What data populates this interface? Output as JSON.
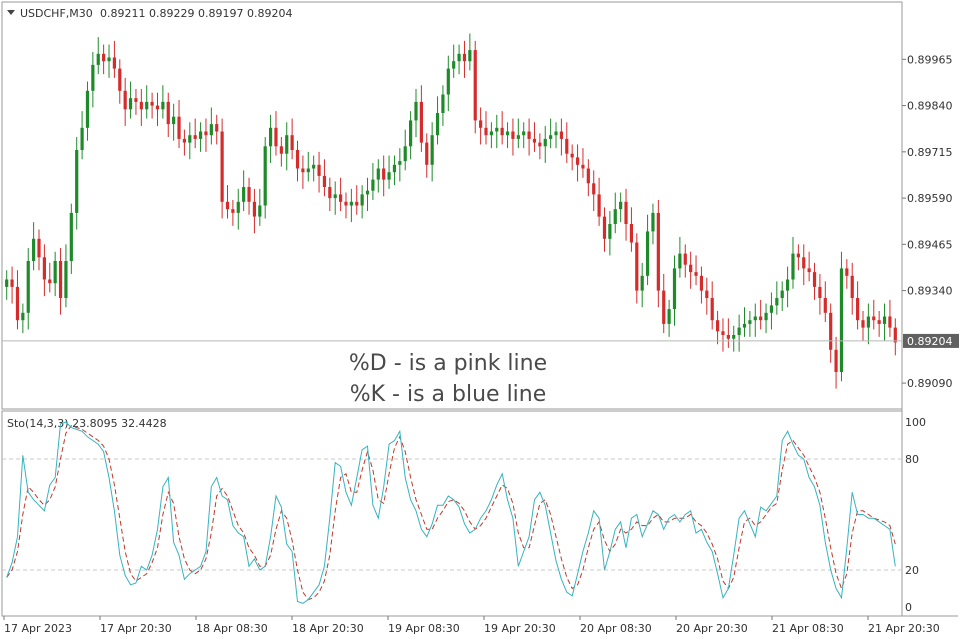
{
  "header": {
    "symbol": "USDCHF,M30",
    "values": "0.89211 0.89229 0.89197 0.89204"
  },
  "annotations": {
    "line1": "%D - is a pink line",
    "line2": "%K - is a blue line"
  },
  "colors": {
    "bull": "#1f8a2a",
    "bear": "#d62b2b",
    "k_line": "#36b3c0",
    "d_line": "#c0392b",
    "current_price_bg": "#606060"
  },
  "chart_data": [
    {
      "type": "candlestick",
      "title": "USDCHF,M30",
      "ylim": [
        0.8902,
        0.9012
      ],
      "y_ticks": [
        0.89965,
        0.8984,
        0.89715,
        0.8959,
        0.89465,
        0.8934,
        0.89204,
        0.8909
      ],
      "y_tick_labels": [
        "0.89965",
        "0.89840",
        "0.89715",
        "0.89590",
        "0.89465",
        "0.89340",
        "0.89204",
        "0.89090"
      ],
      "current_price": 0.89204,
      "current_price_label": "0.89204",
      "grid": false,
      "closes": [
        0.8937,
        0.8935,
        0.8926,
        0.8928,
        0.8942,
        0.8948,
        0.8943,
        0.8937,
        0.8936,
        0.8942,
        0.8932,
        0.8942,
        0.8955,
        0.8972,
        0.8978,
        0.8988,
        0.8995,
        0.8998,
        0.8996,
        0.8997,
        0.8994,
        0.8988,
        0.8983,
        0.8986,
        0.8985,
        0.8983,
        0.8985,
        0.8984,
        0.8983,
        0.8985,
        0.8979,
        0.8981,
        0.8975,
        0.8974,
        0.8976,
        0.8975,
        0.8977,
        0.8976,
        0.8979,
        0.8977,
        0.8958,
        0.8956,
        0.8955,
        0.8958,
        0.8962,
        0.8958,
        0.8954,
        0.8957,
        0.8973,
        0.8978,
        0.8973,
        0.8971,
        0.8976,
        0.8972,
        0.8967,
        0.8966,
        0.8967,
        0.8968,
        0.8965,
        0.8962,
        0.8959,
        0.896,
        0.8958,
        0.8957,
        0.8958,
        0.8957,
        0.896,
        0.8961,
        0.8964,
        0.8967,
        0.8964,
        0.8966,
        0.8968,
        0.8969,
        0.8973,
        0.898,
        0.8985,
        0.8974,
        0.8968,
        0.8976,
        0.8982,
        0.8987,
        0.8994,
        0.8996,
        0.8998,
        0.8996,
        0.8999,
        0.898,
        0.8978,
        0.8976,
        0.8977,
        0.8978,
        0.8976,
        0.8977,
        0.8975,
        0.8976,
        0.8977,
        0.8975,
        0.8974,
        0.8973,
        0.8975,
        0.8976,
        0.8977,
        0.8975,
        0.8971,
        0.897,
        0.8968,
        0.8967,
        0.8963,
        0.896,
        0.8954,
        0.8948,
        0.8952,
        0.8956,
        0.8958,
        0.8952,
        0.8947,
        0.8934,
        0.8938,
        0.895,
        0.8955,
        0.8934,
        0.8925,
        0.8929,
        0.894,
        0.8944,
        0.8941,
        0.8939,
        0.8938,
        0.8934,
        0.8932,
        0.8926,
        0.8923,
        0.8922,
        0.8921,
        0.8922,
        0.8924,
        0.8925,
        0.8926,
        0.8927,
        0.8926,
        0.8928,
        0.893,
        0.8932,
        0.8934,
        0.8937,
        0.8944,
        0.8943,
        0.894,
        0.8939,
        0.8935,
        0.8932,
        0.8928,
        0.8918,
        0.8912,
        0.894,
        0.8938,
        0.8932,
        0.8926,
        0.8924,
        0.8927,
        0.8926,
        0.8925,
        0.8927,
        0.8924,
        0.892
      ]
    },
    {
      "type": "line",
      "title": "Sto(14,3,3) 23.8095 32.4428",
      "ylim": [
        0,
        100
      ],
      "y_ticks": [
        100,
        80,
        20,
        0
      ],
      "y_tick_labels": [
        "100",
        "80",
        "20",
        "0"
      ],
      "levels": [
        80,
        20
      ],
      "series": [
        {
          "name": "%K",
          "values": [
            16,
            24,
            38,
            82,
            62,
            58,
            55,
            52,
            66,
            70,
            99,
            100,
            97,
            96,
            95,
            92,
            90,
            88,
            84,
            70,
            52,
            28,
            17,
            12,
            13,
            22,
            20,
            28,
            42,
            65,
            70,
            35,
            28,
            15,
            18,
            20,
            22,
            30,
            65,
            70,
            60,
            58,
            44,
            40,
            38,
            22,
            26,
            20,
            22,
            38,
            60,
            54,
            34,
            30,
            3,
            2,
            4,
            8,
            12,
            22,
            48,
            78,
            76,
            62,
            55,
            70,
            85,
            87,
            55,
            48,
            65,
            88,
            90,
            95,
            70,
            58,
            52,
            42,
            38,
            45,
            55,
            55,
            60,
            58,
            54,
            45,
            40,
            42,
            48,
            52,
            58,
            66,
            72,
            58,
            48,
            22,
            30,
            38,
            58,
            62,
            55,
            40,
            25,
            15,
            8,
            6,
            18,
            30,
            40,
            52,
            48,
            20,
            30,
            42,
            46,
            32,
            48,
            50,
            38,
            45,
            52,
            50,
            42,
            48,
            50,
            46,
            50,
            52,
            40,
            42,
            35,
            30,
            18,
            5,
            10,
            28,
            48,
            52,
            45,
            38,
            54,
            52,
            56,
            60,
            90,
            95,
            88,
            82,
            80,
            70,
            65,
            55,
            35,
            20,
            10,
            5,
            32,
            62,
            50,
            50,
            48,
            48,
            46,
            44,
            42,
            22
          ]
        },
        {
          "name": "%D",
          "values": [
            16,
            20,
            30,
            50,
            65,
            62,
            58,
            55,
            58,
            65,
            80,
            94,
            98,
            97,
            96,
            94,
            92,
            90,
            87,
            80,
            66,
            48,
            30,
            18,
            14,
            16,
            18,
            24,
            32,
            50,
            62,
            56,
            38,
            26,
            20,
            18,
            20,
            26,
            40,
            60,
            64,
            60,
            52,
            44,
            40,
            32,
            28,
            22,
            22,
            28,
            42,
            52,
            48,
            36,
            20,
            8,
            4,
            5,
            8,
            14,
            28,
            52,
            70,
            72,
            62,
            62,
            74,
            84,
            74,
            58,
            56,
            72,
            86,
            92,
            84,
            70,
            58,
            50,
            42,
            42,
            48,
            52,
            57,
            58,
            56,
            52,
            46,
            42,
            44,
            48,
            54,
            60,
            66,
            64,
            56,
            40,
            32,
            32,
            44,
            56,
            58,
            50,
            38,
            26,
            16,
            10,
            12,
            20,
            32,
            42,
            46,
            36,
            30,
            34,
            42,
            40,
            42,
            46,
            44,
            44,
            48,
            50,
            46,
            46,
            48,
            48,
            48,
            50,
            46,
            44,
            40,
            34,
            26,
            14,
            10,
            16,
            32,
            46,
            48,
            44,
            46,
            50,
            54,
            56,
            74,
            88,
            90,
            86,
            82,
            76,
            70,
            62,
            48,
            32,
            18,
            10,
            18,
            40,
            52,
            52,
            50,
            48,
            47,
            46,
            44,
            34
          ]
        }
      ]
    }
  ],
  "x_axis": {
    "labels": [
      "17 Apr 2023",
      "17 Apr 20:30",
      "18 Apr 08:30",
      "18 Apr 20:30",
      "19 Apr 08:30",
      "19 Apr 20:30",
      "20 Apr 08:30",
      "20 Apr 20:30",
      "21 Apr 08:30",
      "21 Apr 20:30"
    ]
  }
}
